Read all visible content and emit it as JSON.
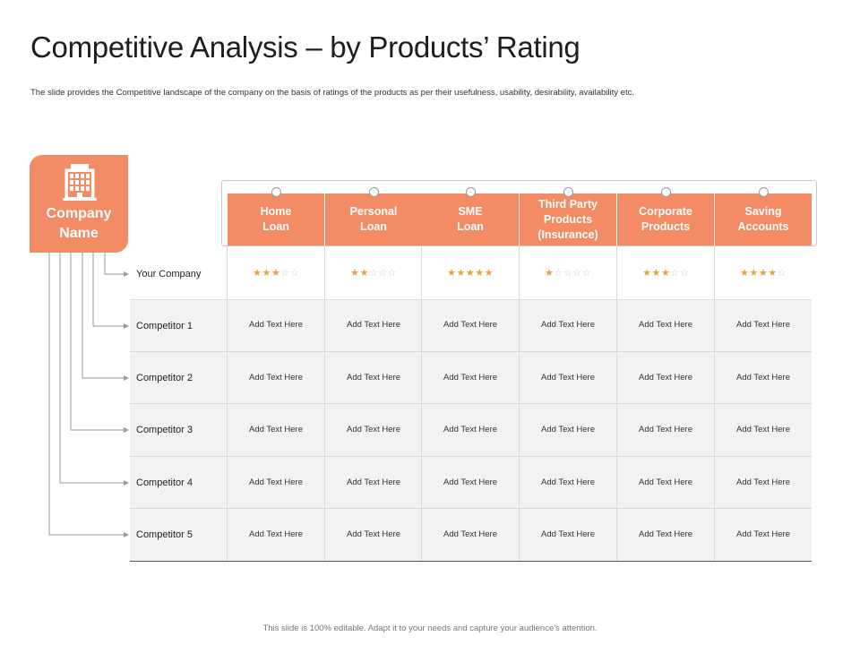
{
  "title": "Competitive Analysis – by Products’ Rating",
  "subtitle": "The slide provides the Competitive landscape of the company on the basis of ratings of the products as per their usefulness, usability, desirability, availability etc.",
  "company_box": {
    "icon": "building-icon",
    "label": "Company\nName"
  },
  "columns": [
    "Home\nLoan",
    "Personal\nLoan",
    "SME\nLoan",
    "Third Party\nProducts\n(Insurance)",
    "Corporate\nProducts",
    "Saving\nAccounts"
  ],
  "rows": [
    {
      "name": "Your Company",
      "ratings": [
        3,
        2,
        5,
        1,
        3,
        4
      ]
    },
    {
      "name": "Competitor 1",
      "cells": [
        "Add Text Here",
        "Add Text Here",
        "Add Text Here",
        "Add Text Here",
        "Add Text Here",
        "Add Text Here"
      ]
    },
    {
      "name": "Competitor 2",
      "cells": [
        "Add Text Here",
        "Add Text Here",
        "Add Text Here",
        "Add Text Here",
        "Add Text Here",
        "Add Text Here"
      ]
    },
    {
      "name": "Competitor 3",
      "cells": [
        "Add Text Here",
        "Add Text Here",
        "Add Text Here",
        "Add Text Here",
        "Add Text Here",
        "Add Text Here"
      ]
    },
    {
      "name": "Competitor 4",
      "cells": [
        "Add Text Here",
        "Add Text Here",
        "Add Text Here",
        "Add Text Here",
        "Add Text Here",
        "Add Text Here"
      ]
    },
    {
      "name": "Competitor 5",
      "cells": [
        "Add Text Here",
        "Add Text Here",
        "Add Text Here",
        "Add Text Here",
        "Add Text Here",
        "Add Text Here"
      ]
    }
  ],
  "max_rating": 5,
  "footer": "This slide is 100% editable. Adapt it to your needs and capture your audience's attention.",
  "colors": {
    "accent": "#f38b65",
    "star": "#e9a23b",
    "star_empty": "#cfcfcf"
  }
}
